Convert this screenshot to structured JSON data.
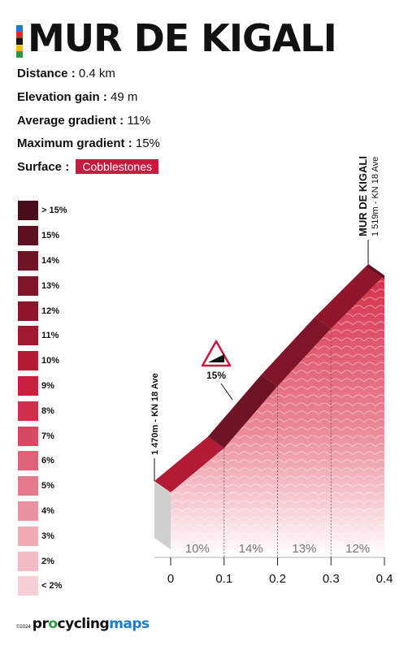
{
  "header": {
    "title": "MUR DE KIGALI",
    "stripe_colors": [
      "#1c7bd0",
      "#e8262b",
      "#111111",
      "#f5c400",
      "#2a9a3e"
    ]
  },
  "stats": [
    {
      "label": "Distance :",
      "value": "0.4 km"
    },
    {
      "label": "Elevation gain :",
      "value": "49 m"
    },
    {
      "label": "Average gradient :",
      "value": "11%"
    },
    {
      "label": "Maximum gradient :",
      "value": "15%"
    }
  ],
  "surface": {
    "label": "Surface :",
    "value": "Cobblestones",
    "color": "#c8193f"
  },
  "legend": [
    {
      "label": "> 15%",
      "color": "#4a0d1b"
    },
    {
      "label": "15%",
      "color": "#5e1022"
    },
    {
      "label": "14%",
      "color": "#6f1326"
    },
    {
      "label": "13%",
      "color": "#7f1528"
    },
    {
      "label": "12%",
      "color": "#8e172b"
    },
    {
      "label": "11%",
      "color": "#a0192f"
    },
    {
      "label": "10%",
      "color": "#b31b34"
    },
    {
      "label": "9%",
      "color": "#c71f3c"
    },
    {
      "label": "8%",
      "color": "#d1304d"
    },
    {
      "label": "7%",
      "color": "#d84a62"
    },
    {
      "label": "6%",
      "color": "#de6277"
    },
    {
      "label": "5%",
      "color": "#e47a8b"
    },
    {
      "label": "4%",
      "color": "#ea92a0"
    },
    {
      "label": "3%",
      "color": "#efa9b4"
    },
    {
      "label": "2%",
      "color": "#f3bcc5"
    },
    {
      "label": "< 2%",
      "color": "#f7cfd6"
    }
  ],
  "chart_data": {
    "type": "area",
    "xlabel": "",
    "ylabel": "",
    "x_ticks": [
      0,
      0.1,
      0.2,
      0.3,
      0.4
    ],
    "x_tick_labels": [
      "0",
      "0.1",
      "0.2",
      "0.3",
      "0.4"
    ],
    "xlim": [
      0,
      0.4
    ],
    "elevation_range_m": [
      1470,
      1519
    ],
    "points": [
      {
        "x": 0,
        "y": 1470
      },
      {
        "x": 0.1,
        "y": 1480
      },
      {
        "x": 0.2,
        "y": 1494
      },
      {
        "x": 0.3,
        "y": 1507
      },
      {
        "x": 0.4,
        "y": 1519
      }
    ],
    "segments": [
      {
        "from": 0,
        "to": 0.1,
        "gradient": "10%",
        "color": "#b31b34"
      },
      {
        "from": 0.1,
        "to": 0.2,
        "gradient": "14%",
        "color": "#6f1326"
      },
      {
        "from": 0.2,
        "to": 0.3,
        "gradient": "13%",
        "color": "#7f1528"
      },
      {
        "from": 0.3,
        "to": 0.4,
        "gradient": "12%",
        "color": "#8e172b"
      }
    ],
    "start_label": "1 470m - KN 18 Ave",
    "end_label_title": "MUR DE KIGALI",
    "end_label_sub": "1 519m - KN 18 Ave",
    "max_gradient_marker": "15%"
  },
  "footer": {
    "copyright": "©2024",
    "brand_parts": [
      "pr",
      "o",
      "cycling",
      "maps"
    ],
    "brand_colors": [
      "#111111",
      "#2a9a3e",
      "#111111",
      "#1c7bd0"
    ]
  }
}
